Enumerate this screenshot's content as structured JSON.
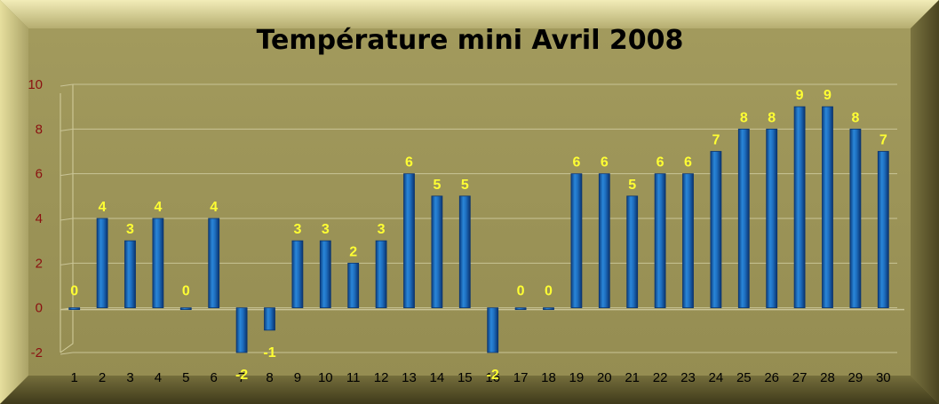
{
  "chart_data": {
    "type": "bar",
    "title": "Température mini Avril 2008",
    "xlabel": "",
    "ylabel": "",
    "categories": [
      "1",
      "2",
      "3",
      "4",
      "5",
      "6",
      "7",
      "8",
      "9",
      "10",
      "11",
      "12",
      "13",
      "14",
      "15",
      "16",
      "17",
      "18",
      "19",
      "20",
      "21",
      "22",
      "23",
      "24",
      "25",
      "26",
      "27",
      "28",
      "29",
      "30"
    ],
    "values": [
      0,
      4,
      3,
      4,
      0,
      4,
      -2,
      -1,
      3,
      3,
      2,
      3,
      6,
      5,
      5,
      -2,
      0,
      0,
      6,
      6,
      5,
      6,
      6,
      7,
      8,
      8,
      9,
      9,
      8,
      7
    ],
    "ylim": [
      -2,
      10
    ],
    "yticks": [
      -2,
      0,
      2,
      4,
      6,
      8,
      10
    ],
    "grid": true,
    "legend": "none",
    "colors": {
      "bar": "#1e6fc0",
      "bar_dark": "#0b3f80",
      "data_label": "#ffff33",
      "ytick": "#8b1010",
      "background": "#8c8549"
    }
  }
}
